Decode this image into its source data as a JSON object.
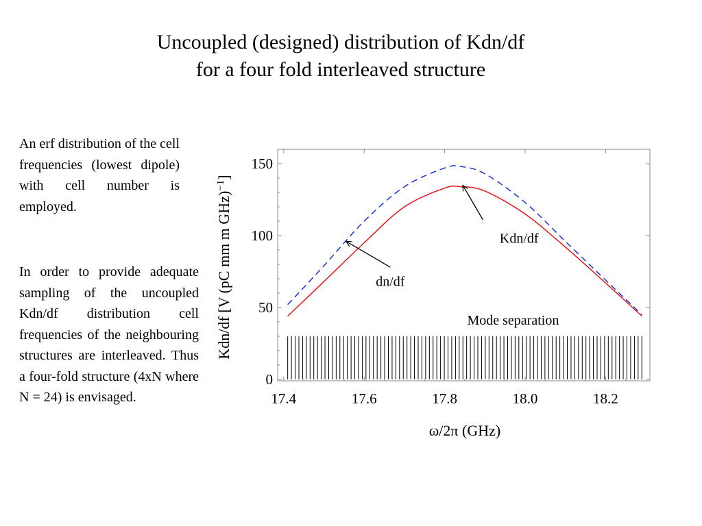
{
  "slide": {
    "title_line1": "Uncoupled (designed) distribution of Kdn/df",
    "title_line2": "for a four fold interleaved structure"
  },
  "text": {
    "paragraph1": "An erf distribution of the cell frequencies (lowest dipole) with cell number is employed.",
    "paragraph2": "In order to provide adequate sampling of the uncoupled Kdn/df distribution cell frequencies of the neighbouring structures are interleaved. Thus a four-fold structure (4xN where N = 24) is envisaged."
  },
  "chart_data": {
    "type": "line",
    "xlabel": "ω/2π (GHz)",
    "ylabel": "Kdn/df [V (pC mm m GHz)−1]",
    "xlim": [
      17.385,
      18.31
    ],
    "ylim": [
      -1,
      160
    ],
    "xticks": [
      "17.4",
      "17.6",
      "17.8",
      "18.0",
      "18.2"
    ],
    "xtick_values": [
      17.4,
      17.6,
      17.8,
      18.0,
      18.2
    ],
    "yticks": [
      "0",
      "50",
      "100",
      "150"
    ],
    "ytick_values": [
      0,
      50,
      100,
      150
    ],
    "series": [
      {
        "key": "kdn",
        "color": "#e8141a",
        "dash": "solid",
        "x": [
          17.41,
          17.5,
          17.6,
          17.7,
          17.8,
          17.84,
          17.9,
          18.0,
          18.1,
          18.2,
          18.29
        ],
        "y": [
          44,
          68,
          95,
          120,
          133,
          134,
          131,
          115,
          92,
          67,
          44
        ]
      },
      {
        "key": "dn",
        "color": "#1533d8",
        "dash": "dashed",
        "x": [
          17.41,
          17.5,
          17.6,
          17.7,
          17.8,
          17.84,
          17.9,
          18.0,
          18.1,
          18.2,
          18.29
        ],
        "y": [
          52,
          79,
          110,
          134,
          147,
          148,
          143,
          123,
          96,
          69,
          45
        ]
      }
    ],
    "annotations": [
      {
        "label": "Kdn/df",
        "text_x": 17.985,
        "text_y": 95,
        "arrow_from": [
          17.895,
          111
        ],
        "arrow_to": [
          17.845,
          135
        ]
      },
      {
        "label": "dn/df",
        "text_x": 17.665,
        "text_y": 65,
        "arrow_from": [
          17.665,
          78
        ],
        "arrow_to": [
          17.555,
          96
        ]
      },
      {
        "label": "Mode separation",
        "text_x": 17.97,
        "text_y": 38
      }
    ],
    "mode_separation": {
      "count": 96,
      "x_start": 17.41,
      "x_end": 18.29,
      "y_height": 30
    },
    "grid": false,
    "legend": "none"
  }
}
